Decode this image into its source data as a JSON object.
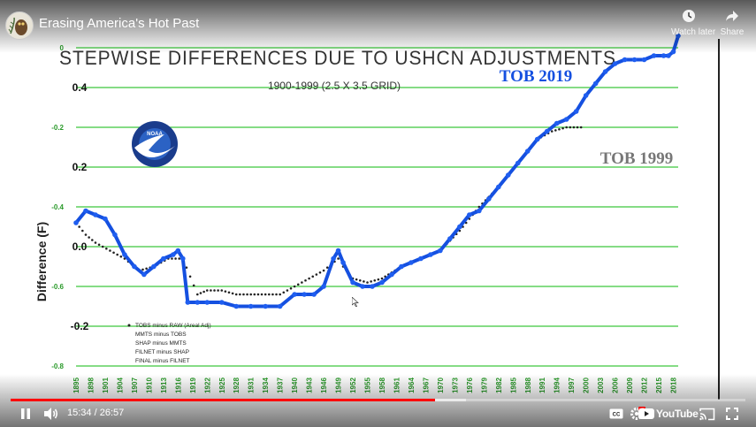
{
  "video": {
    "title": "Erasing America's Hot Past",
    "watch_later_label": "Watch later",
    "share_label": "Share"
  },
  "controls": {
    "current_time": "15:34",
    "duration": "26:57",
    "time_separator": " / ",
    "played_fraction": 0.578,
    "loaded_fraction": 0.62,
    "youtube_label": "YouTube"
  },
  "chart_data": {
    "type": "line",
    "title": "STEPWISE DIFFERENCES DUE TO USHCN ADJUSTMENTS",
    "subtitle": "1900-1999 (2.5 X 3.5 GRID)",
    "ylabel": "Difference (F)",
    "ylim": [
      -0.8,
      0.0
    ],
    "xlim": [
      1895,
      2019
    ],
    "green_tick_labels": [
      "0",
      "-0.2",
      "-0.4",
      "-0.6",
      "-0.8"
    ],
    "black_tick_labels": [
      "0.4",
      "0.2",
      "0.0",
      "-0.2"
    ],
    "x_tick_labels": [
      "1895",
      "1898",
      "1901",
      "1904",
      "1907",
      "1910",
      "1913",
      "1916",
      "1919",
      "1922",
      "1925",
      "1928",
      "1931",
      "1934",
      "1937",
      "1940",
      "1943",
      "1946",
      "1949",
      "1952",
      "1955",
      "1958",
      "1961",
      "1964",
      "1967",
      "1970",
      "1973",
      "1976",
      "1979",
      "1982",
      "1985",
      "1988",
      "1991",
      "1994",
      "1997",
      "2000",
      "2003",
      "2006",
      "2009",
      "2012",
      "2015",
      "2018"
    ],
    "series": [
      {
        "name": "TOB 2019",
        "color": "#1550e0",
        "x": [
          1895,
          1897,
          1899,
          1901,
          1903,
          1905,
          1907,
          1909,
          1911,
          1913,
          1915,
          1916,
          1917,
          1918,
          1920,
          1922,
          1925,
          1928,
          1931,
          1934,
          1937,
          1940,
          1942,
          1944,
          1946,
          1948,
          1949,
          1950,
          1952,
          1954,
          1956,
          1958,
          1960,
          1962,
          1964,
          1966,
          1968,
          1970,
          1972,
          1974,
          1976,
          1978,
          1980,
          1982,
          1984,
          1986,
          1988,
          1990,
          1992,
          1994,
          1996,
          1998,
          2000,
          2002,
          2004,
          2006,
          2008,
          2010,
          2012,
          2014,
          2016,
          2017,
          2018,
          2019
        ],
        "y": [
          -0.44,
          -0.41,
          -0.42,
          -0.43,
          -0.47,
          -0.52,
          -0.55,
          -0.57,
          -0.55,
          -0.53,
          -0.52,
          -0.51,
          -0.53,
          -0.64,
          -0.64,
          -0.64,
          -0.64,
          -0.65,
          -0.65,
          -0.65,
          -0.65,
          -0.62,
          -0.62,
          -0.62,
          -0.6,
          -0.53,
          -0.51,
          -0.54,
          -0.59,
          -0.6,
          -0.6,
          -0.59,
          -0.57,
          -0.55,
          -0.54,
          -0.53,
          -0.52,
          -0.51,
          -0.48,
          -0.45,
          -0.42,
          -0.41,
          -0.38,
          -0.35,
          -0.32,
          -0.29,
          -0.26,
          -0.23,
          -0.21,
          -0.19,
          -0.18,
          -0.16,
          -0.12,
          -0.09,
          -0.06,
          -0.04,
          -0.03,
          -0.03,
          -0.03,
          -0.02,
          -0.02,
          -0.02,
          -0.01,
          0.03
        ]
      },
      {
        "name": "TOB 1999",
        "color": "#222222",
        "x": [
          1895,
          1897,
          1899,
          1902,
          1905,
          1908,
          1911,
          1914,
          1917,
          1920,
          1922,
          1925,
          1928,
          1931,
          1934,
          1937,
          1940,
          1943,
          1946,
          1949,
          1950,
          1952,
          1955,
          1958,
          1962,
          1966,
          1970,
          1974,
          1978,
          1982,
          1986,
          1990,
          1993,
          1996,
          1999
        ],
        "y": [
          -0.44,
          -0.47,
          -0.49,
          -0.51,
          -0.53,
          -0.56,
          -0.55,
          -0.53,
          -0.53,
          -0.62,
          -0.61,
          -0.61,
          -0.62,
          -0.62,
          -0.62,
          -0.62,
          -0.6,
          -0.58,
          -0.56,
          -0.53,
          -0.55,
          -0.58,
          -0.59,
          -0.58,
          -0.55,
          -0.53,
          -0.51,
          -0.46,
          -0.4,
          -0.35,
          -0.29,
          -0.23,
          -0.21,
          -0.2,
          -0.2
        ]
      }
    ],
    "legend": [
      "TOBS minus RAW (Areal Adj)",
      "MMTS minus TOBS",
      "SHAP minus MMTS",
      "FILNET minus SHAP",
      "FINAL minus FILNET"
    ],
    "logo_text": "NOAA",
    "grid": true,
    "legend_position": "bottom-left"
  }
}
